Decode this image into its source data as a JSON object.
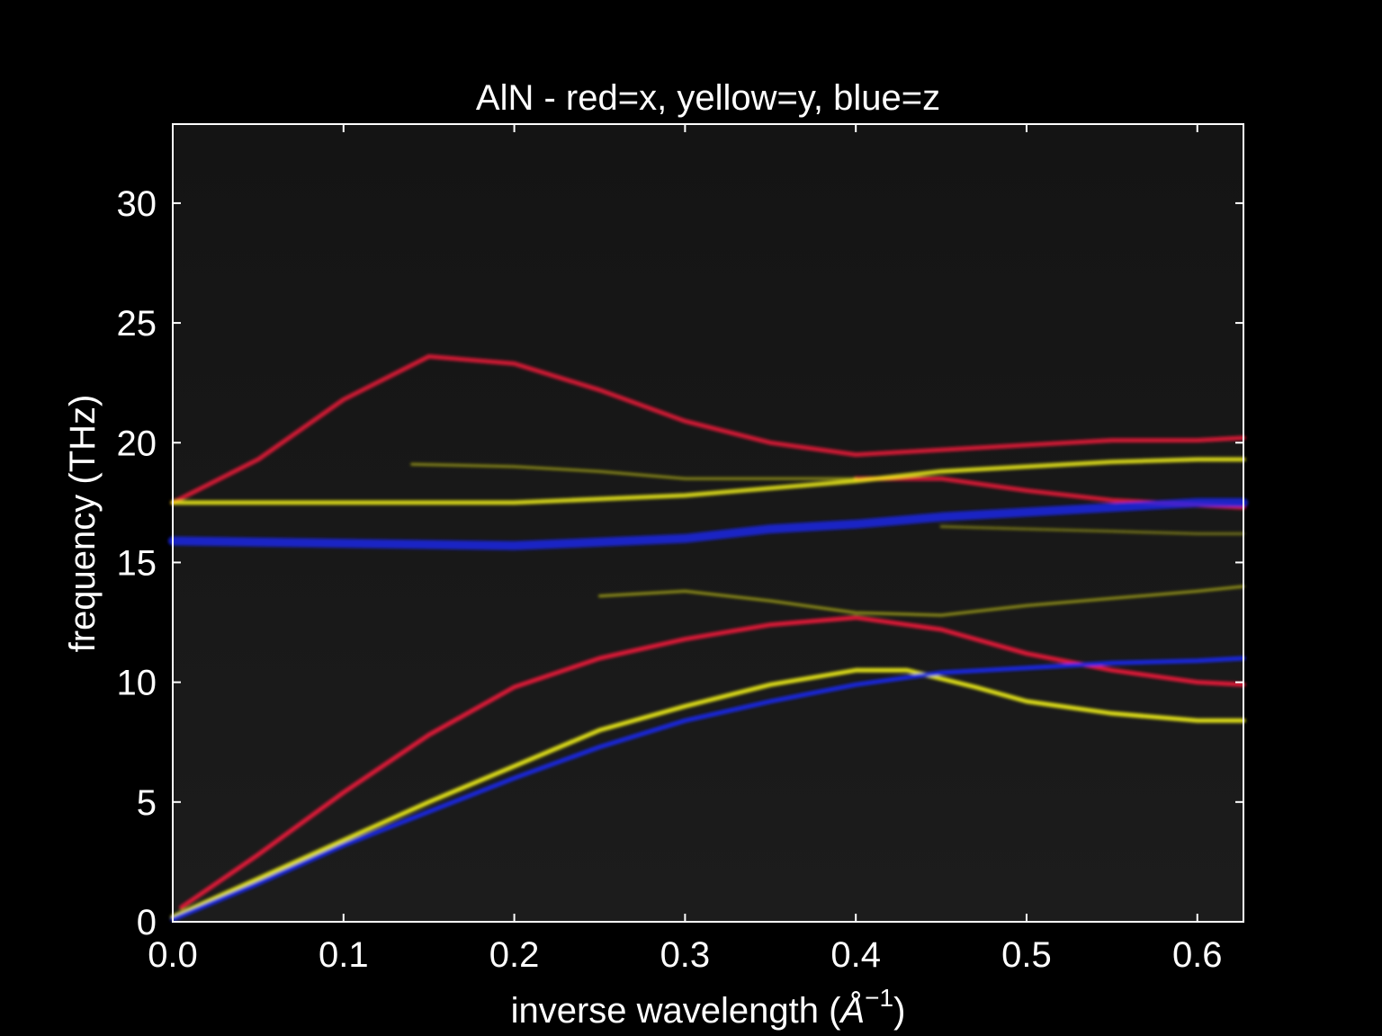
{
  "chart_data": {
    "type": "heatmap",
    "title": "AlN - red=x, yellow=y, blue=z",
    "xlabel": "inverse wavelength (",
    "xlabel_unit": "Å",
    "xlabel_exp": "−1",
    "xlabel_close": ")",
    "ylabel": "frequency (THz)",
    "xlim": [
      0,
      0.627
    ],
    "ylim": [
      0,
      33.3
    ],
    "x_ticks": [
      0.0,
      0.1,
      0.2,
      0.3,
      0.4,
      0.5,
      0.6
    ],
    "x_tick_labels": [
      "0.0",
      "0.1",
      "0.2",
      "0.3",
      "0.4",
      "0.5",
      "0.6"
    ],
    "y_ticks": [
      0,
      5,
      10,
      15,
      20,
      25,
      30
    ],
    "y_tick_labels": [
      "0",
      "5",
      "10",
      "15",
      "20",
      "25",
      "30"
    ],
    "grid": false,
    "background_color": "#000000",
    "plot_background_color": "#141414",
    "series": [
      {
        "color": "#ff1a3c",
        "width": 5,
        "opacity": 0.8,
        "x": [
          0.0,
          0.05,
          0.1,
          0.15,
          0.2,
          0.25,
          0.3,
          0.35,
          0.4,
          0.45,
          0.5,
          0.55,
          0.6,
          0.627
        ],
        "y": [
          17.5,
          19.3,
          21.8,
          23.6,
          23.3,
          22.2,
          20.9,
          20.0,
          19.5,
          19.7,
          19.9,
          20.1,
          20.1,
          20.2
        ]
      },
      {
        "color": "#ff1a3c",
        "width": 5,
        "opacity": 0.8,
        "x": [
          0.4,
          0.45,
          0.5,
          0.55,
          0.6,
          0.627
        ],
        "y": [
          18.5,
          18.5,
          18.0,
          17.6,
          17.4,
          17.3
        ]
      },
      {
        "color": "#ff1a3c",
        "width": 5,
        "opacity": 0.85,
        "x": [
          0.005,
          0.05,
          0.1,
          0.15,
          0.2,
          0.25,
          0.3,
          0.35,
          0.4,
          0.45,
          0.5,
          0.55,
          0.6,
          0.627
        ],
        "y": [
          0.6,
          2.8,
          5.4,
          7.8,
          9.8,
          11.0,
          11.8,
          12.4,
          12.7,
          12.2,
          11.2,
          10.5,
          10.0,
          9.9
        ]
      },
      {
        "color": "#ffff1a",
        "width": 5,
        "opacity": 0.8,
        "x": [
          0.0,
          0.1,
          0.2,
          0.3,
          0.4,
          0.45,
          0.5,
          0.55,
          0.6,
          0.627
        ],
        "y": [
          17.5,
          17.5,
          17.5,
          17.8,
          18.4,
          18.8,
          19.0,
          19.2,
          19.3,
          19.3
        ]
      },
      {
        "color": "#ffff1a",
        "width": 3,
        "opacity": 0.5,
        "x": [
          0.14,
          0.2,
          0.25,
          0.3,
          0.35,
          0.4
        ],
        "y": [
          19.1,
          19.0,
          18.8,
          18.5,
          18.5,
          18.5
        ]
      },
      {
        "color": "#ffff1a",
        "width": 3,
        "opacity": 0.55,
        "x": [
          0.25,
          0.3,
          0.35,
          0.4,
          0.45,
          0.5,
          0.55,
          0.6,
          0.627
        ],
        "y": [
          13.6,
          13.8,
          13.4,
          12.9,
          12.8,
          13.2,
          13.5,
          13.8,
          14.0
        ]
      },
      {
        "color": "#ffff1a",
        "width": 3,
        "opacity": 0.4,
        "x": [
          0.45,
          0.5,
          0.55,
          0.6,
          0.627
        ],
        "y": [
          16.5,
          16.4,
          16.3,
          16.2,
          16.2
        ]
      },
      {
        "color": "#ffff1a",
        "width": 5,
        "opacity": 0.85,
        "x": [
          0.0,
          0.05,
          0.1,
          0.15,
          0.2,
          0.25,
          0.3,
          0.35,
          0.4,
          0.43,
          0.47,
          0.5,
          0.55,
          0.6,
          0.627
        ],
        "y": [
          0.2,
          1.8,
          3.4,
          5.0,
          6.5,
          8.0,
          9.0,
          9.9,
          10.5,
          10.5,
          9.8,
          9.2,
          8.7,
          8.4,
          8.4
        ]
      },
      {
        "color": "#1a28ff",
        "width": 10,
        "opacity": 0.75,
        "x": [
          0.0,
          0.1,
          0.2,
          0.3,
          0.35,
          0.4,
          0.45,
          0.5,
          0.55,
          0.6,
          0.627
        ],
        "y": [
          15.9,
          15.8,
          15.7,
          16.0,
          16.4,
          16.6,
          16.9,
          17.1,
          17.3,
          17.5,
          17.5
        ]
      },
      {
        "color": "#1a28ff",
        "width": 5,
        "opacity": 0.85,
        "x": [
          0.0,
          0.05,
          0.1,
          0.15,
          0.2,
          0.25,
          0.3,
          0.35,
          0.4,
          0.45,
          0.5,
          0.55,
          0.6,
          0.627
        ],
        "y": [
          0.1,
          1.6,
          3.2,
          4.6,
          6.0,
          7.3,
          8.4,
          9.2,
          9.9,
          10.4,
          10.6,
          10.8,
          10.9,
          11.0
        ]
      }
    ]
  }
}
